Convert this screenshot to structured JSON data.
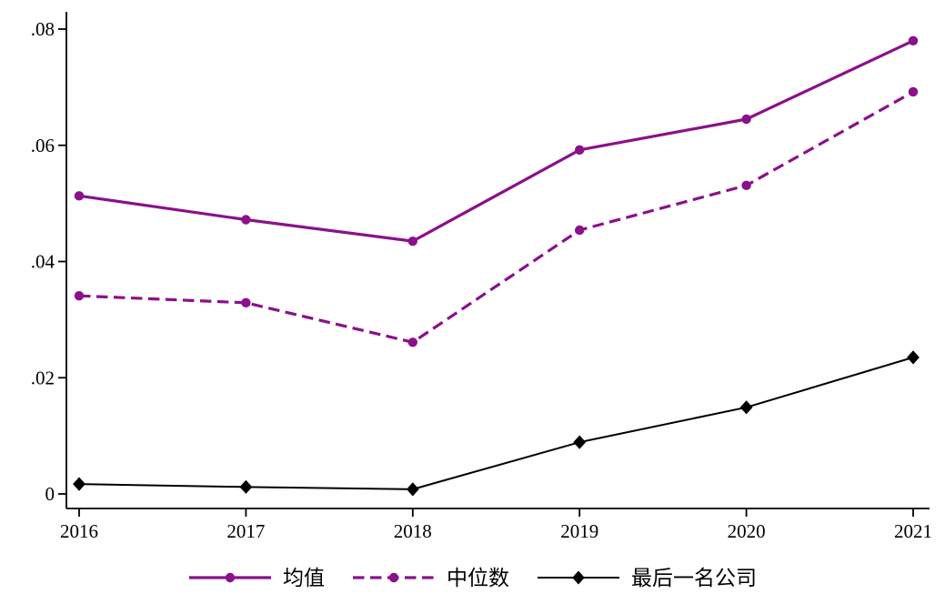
{
  "figure": {
    "background_color": "#ffffff",
    "axis_color": "#000000",
    "accent_purple": "#8B108B"
  },
  "chart_data": {
    "type": "line",
    "title": "",
    "xlabel": "",
    "ylabel": "",
    "grid": false,
    "legend_position": "bottom-center",
    "x": [
      2016,
      2017,
      2018,
      2019,
      2020,
      2021
    ],
    "x_tick_labels": [
      "2016",
      "2017",
      "2018",
      "2019",
      "2020",
      "2021"
    ],
    "y_ticks": {
      "values": [
        0,
        0.02,
        0.04,
        0.06,
        0.08
      ],
      "labels": [
        "0",
        ".02",
        ".04",
        ".06",
        ".08"
      ]
    },
    "ylim": [
      0,
      0.08
    ],
    "series": [
      {
        "key": "mean",
        "name": "均值",
        "color": "#8B108B",
        "style": "solid",
        "marker": "circle",
        "values": [
          0.0513,
          0.0472,
          0.0435,
          0.0592,
          0.0645,
          0.078
        ]
      },
      {
        "key": "median",
        "name": "中位数",
        "color": "#8B108B",
        "style": "dashed",
        "marker": "circle",
        "values": [
          0.0341,
          0.0329,
          0.0261,
          0.0454,
          0.0531,
          0.0692
        ]
      },
      {
        "key": "last_place_company",
        "name": "最后一名公司",
        "color": "#000000",
        "style": "solid",
        "marker": "diamond",
        "values": [
          0.0017,
          0.0012,
          0.0008,
          0.0089,
          0.0149,
          0.0235
        ]
      }
    ]
  }
}
